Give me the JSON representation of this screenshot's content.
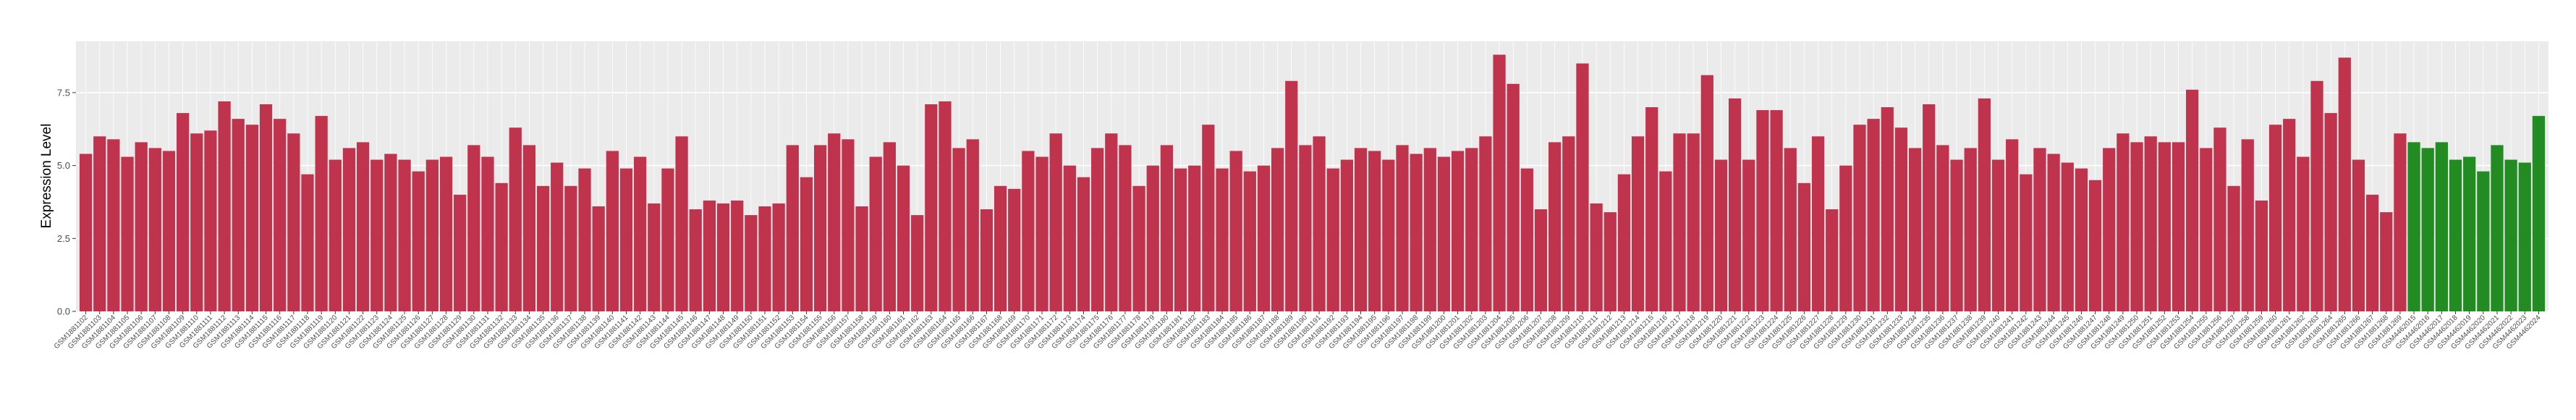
{
  "chart_data": {
    "type": "bar",
    "y_label": "Expression Level",
    "categories": [
      "GSM1881102",
      "GSM1881103",
      "GSM1881104",
      "GSM1881105",
      "GSM1881106",
      "GSM1881107",
      "GSM1881108",
      "GSM1881109",
      "GSM1881110",
      "GSM1881111",
      "GSM1881112",
      "GSM1881113",
      "GSM1881114",
      "GSM1881115",
      "GSM1881116",
      "GSM1881117",
      "GSM1881118",
      "GSM1881119",
      "GSM1881120",
      "GSM1881121",
      "GSM1881122",
      "GSM1881123",
      "GSM1881124",
      "GSM1881125",
      "GSM1881126",
      "GSM1881127",
      "GSM1881128",
      "GSM1881129",
      "GSM1881130",
      "GSM1881131",
      "GSM1881132",
      "GSM1881133",
      "GSM1881134",
      "GSM1881135",
      "GSM1881136",
      "GSM1881137",
      "GSM1881138",
      "GSM1881139",
      "GSM1881140",
      "GSM1881141",
      "GSM1881142",
      "GSM1881143",
      "GSM1881144",
      "GSM1881145",
      "GSM1881146",
      "GSM1881147",
      "GSM1881148",
      "GSM1881149",
      "GSM1881150",
      "GSM1881151",
      "GSM1881152",
      "GSM1881153",
      "GSM1881154",
      "GSM1881155",
      "GSM1881156",
      "GSM1881157",
      "GSM1881158",
      "GSM1881159",
      "GSM1881160",
      "GSM1881161",
      "GSM1881162",
      "GSM1881163",
      "GSM1881164",
      "GSM1881165",
      "GSM1881166",
      "GSM1881167",
      "GSM1881168",
      "GSM1881169",
      "GSM1881170",
      "GSM1881171",
      "GSM1881172",
      "GSM1881173",
      "GSM1881174",
      "GSM1881175",
      "GSM1881176",
      "GSM1881177",
      "GSM1881178",
      "GSM1881179",
      "GSM1881180",
      "GSM1881181",
      "GSM1881182",
      "GSM1881183",
      "GSM1881184",
      "GSM1881185",
      "GSM1881186",
      "GSM1881187",
      "GSM1881188",
      "GSM1881189",
      "GSM1881190",
      "GSM1881191",
      "GSM1881192",
      "GSM1881193",
      "GSM1881194",
      "GSM1881195",
      "GSM1881196",
      "GSM1881197",
      "GSM1881198",
      "GSM1881199",
      "GSM1881200",
      "GSM1881201",
      "GSM1881202",
      "GSM1881203",
      "GSM1881204",
      "GSM1881205",
      "GSM1881206",
      "GSM1881207",
      "GSM1881208",
      "GSM1881209",
      "GSM1881210",
      "GSM1881211",
      "GSM1881212",
      "GSM1881213",
      "GSM1881214",
      "GSM1881215",
      "GSM1881216",
      "GSM1881217",
      "GSM1881218",
      "GSM1881219",
      "GSM1881220",
      "GSM1881221",
      "GSM1881222",
      "GSM1881223",
      "GSM1881224",
      "GSM1881225",
      "GSM1881226",
      "GSM1881227",
      "GSM1881228",
      "GSM1881229",
      "GSM1881230",
      "GSM1881231",
      "GSM1881232",
      "GSM1881233",
      "GSM1881234",
      "GSM1881235",
      "GSM1881236",
      "GSM1881237",
      "GSM1881238",
      "GSM1881239",
      "GSM1881240",
      "GSM1881241",
      "GSM1881242",
      "GSM1881243",
      "GSM1881244",
      "GSM1881245",
      "GSM1881246",
      "GSM1881247",
      "GSM1881248",
      "GSM1881249",
      "GSM1881250",
      "GSM1881251",
      "GSM1881252",
      "GSM1881253",
      "GSM1881254",
      "GSM1881255",
      "GSM1881256",
      "GSM1881257",
      "GSM1881258",
      "GSM1881259",
      "GSM1881260",
      "GSM1881261",
      "GSM1881262",
      "GSM1881263",
      "GSM1881264",
      "GSM1881265",
      "GSM1881266",
      "GSM1881267",
      "GSM1881268",
      "GSM1881269",
      "GSM4462015",
      "GSM4462016",
      "GSM4462017",
      "GSM4462018",
      "GSM4462019",
      "GSM4462020",
      "GSM4462021",
      "GSM4462022",
      "GSM4462023",
      "GSM4462024"
    ],
    "values": [
      5.4,
      6.0,
      5.9,
      5.3,
      5.8,
      5.6,
      5.5,
      6.8,
      6.1,
      6.2,
      7.2,
      6.6,
      6.4,
      7.1,
      6.6,
      6.1,
      4.7,
      6.7,
      5.2,
      5.6,
      5.8,
      5.2,
      5.4,
      5.2,
      4.8,
      5.2,
      5.3,
      4.0,
      5.7,
      5.3,
      4.4,
      6.3,
      5.7,
      4.3,
      5.1,
      4.3,
      4.9,
      3.6,
      5.5,
      4.9,
      5.3,
      3.7,
      4.9,
      6.0,
      3.5,
      3.8,
      3.7,
      3.8,
      3.3,
      3.6,
      3.7,
      5.7,
      4.6,
      5.7,
      6.1,
      5.9,
      3.6,
      5.3,
      5.8,
      5.0,
      3.3,
      7.1,
      7.2,
      5.6,
      5.9,
      3.5,
      4.3,
      4.2,
      5.5,
      5.3,
      6.1,
      5.0,
      4.6,
      5.6,
      6.1,
      5.7,
      4.3,
      5.0,
      5.7,
      4.9,
      5.0,
      6.4,
      4.9,
      5.5,
      4.8,
      5.0,
      5.6,
      7.9,
      5.7,
      6.0,
      4.9,
      5.2,
      5.6,
      5.5,
      5.2,
      5.7,
      5.4,
      5.6,
      5.3,
      5.5,
      5.6,
      6.0,
      8.8,
      7.8,
      4.9,
      3.5,
      5.8,
      6.0,
      8.5,
      3.7,
      3.4,
      4.7,
      6.0,
      7.0,
      4.8,
      6.1,
      6.1,
      8.1,
      5.2,
      7.3,
      5.2,
      6.9,
      6.9,
      5.6,
      4.4,
      6.0,
      3.5,
      5.0,
      6.4,
      6.6,
      7.0,
      6.3,
      5.6,
      7.1,
      5.7,
      5.2,
      5.6,
      7.3,
      5.2,
      5.9,
      4.7,
      5.6,
      5.4,
      5.1,
      4.9,
      4.5,
      5.6,
      6.1,
      5.8,
      6.0,
      5.8,
      5.8,
      7.6,
      5.6,
      6.3,
      4.3,
      5.9,
      3.8,
      6.4,
      6.6,
      5.3,
      7.9,
      6.8,
      8.7,
      5.2,
      4.0,
      3.4,
      6.1,
      5.8,
      5.6,
      5.8,
      5.2,
      5.3,
      4.8,
      5.7,
      5.2,
      5.1,
      6.7
    ],
    "colors": [
      "#c0334d",
      "#c0334d",
      "#c0334d",
      "#c0334d",
      "#c0334d",
      "#c0334d",
      "#c0334d",
      "#c0334d",
      "#c0334d",
      "#c0334d",
      "#c0334d",
      "#c0334d",
      "#c0334d",
      "#c0334d",
      "#c0334d",
      "#c0334d",
      "#c0334d",
      "#c0334d",
      "#c0334d",
      "#c0334d",
      "#c0334d",
      "#c0334d",
      "#c0334d",
      "#c0334d",
      "#c0334d",
      "#c0334d",
      "#c0334d",
      "#c0334d",
      "#c0334d",
      "#c0334d",
      "#c0334d",
      "#c0334d",
      "#c0334d",
      "#c0334d",
      "#c0334d",
      "#c0334d",
      "#c0334d",
      "#c0334d",
      "#c0334d",
      "#c0334d",
      "#c0334d",
      "#c0334d",
      "#c0334d",
      "#c0334d",
      "#c0334d",
      "#c0334d",
      "#c0334d",
      "#c0334d",
      "#c0334d",
      "#c0334d",
      "#c0334d",
      "#c0334d",
      "#c0334d",
      "#c0334d",
      "#c0334d",
      "#c0334d",
      "#c0334d",
      "#c0334d",
      "#c0334d",
      "#c0334d",
      "#c0334d",
      "#c0334d",
      "#c0334d",
      "#c0334d",
      "#c0334d",
      "#c0334d",
      "#c0334d",
      "#c0334d",
      "#c0334d",
      "#c0334d",
      "#c0334d",
      "#c0334d",
      "#c0334d",
      "#c0334d",
      "#c0334d",
      "#c0334d",
      "#c0334d",
      "#c0334d",
      "#c0334d",
      "#c0334d",
      "#c0334d",
      "#c0334d",
      "#c0334d",
      "#c0334d",
      "#c0334d",
      "#c0334d",
      "#c0334d",
      "#c0334d",
      "#c0334d",
      "#c0334d",
      "#c0334d",
      "#c0334d",
      "#c0334d",
      "#c0334d",
      "#c0334d",
      "#c0334d",
      "#c0334d",
      "#c0334d",
      "#c0334d",
      "#c0334d",
      "#c0334d",
      "#c0334d",
      "#c0334d",
      "#c0334d",
      "#c0334d",
      "#c0334d",
      "#c0334d",
      "#c0334d",
      "#c0334d",
      "#c0334d",
      "#c0334d",
      "#c0334d",
      "#c0334d",
      "#c0334d",
      "#c0334d",
      "#c0334d",
      "#c0334d",
      "#c0334d",
      "#c0334d",
      "#c0334d",
      "#c0334d",
      "#c0334d",
      "#c0334d",
      "#c0334d",
      "#c0334d",
      "#c0334d",
      "#c0334d",
      "#c0334d",
      "#c0334d",
      "#c0334d",
      "#c0334d",
      "#c0334d",
      "#c0334d",
      "#c0334d",
      "#c0334d",
      "#c0334d",
      "#c0334d",
      "#c0334d",
      "#c0334d",
      "#c0334d",
      "#c0334d",
      "#c0334d",
      "#c0334d",
      "#c0334d",
      "#c0334d",
      "#c0334d",
      "#c0334d",
      "#c0334d",
      "#c0334d",
      "#c0334d",
      "#c0334d",
      "#c0334d",
      "#c0334d",
      "#c0334d",
      "#c0334d",
      "#c0334d",
      "#c0334d",
      "#c0334d",
      "#c0334d",
      "#c0334d",
      "#c0334d",
      "#c0334d",
      "#c0334d",
      "#c0334d",
      "#c0334d",
      "#c0334d",
      "#c0334d",
      "#c0334d",
      "#228b22",
      "#228b22",
      "#228b22",
      "#228b22",
      "#228b22",
      "#228b22",
      "#228b22",
      "#228b22",
      "#228b22",
      "#228b22"
    ],
    "ylim": [
      0,
      9.26
    ],
    "yticks": [
      {
        "value": 0,
        "label": "0.0"
      },
      2.5,
      {
        "value": 5,
        "label": "5.0"
      },
      7.5
    ],
    "grid": true
  }
}
